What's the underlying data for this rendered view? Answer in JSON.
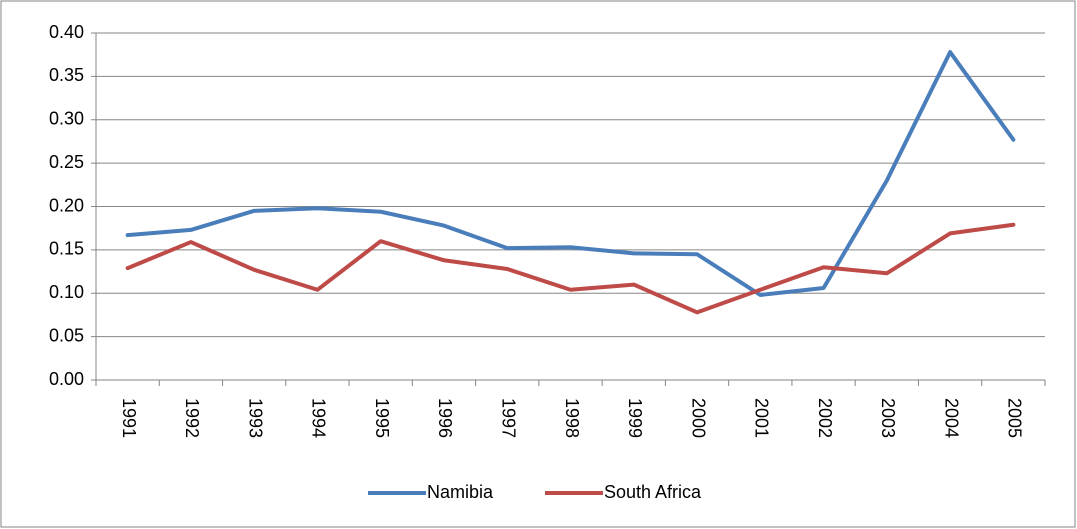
{
  "chart_data": {
    "type": "line",
    "categories": [
      "1991",
      "1992",
      "1993",
      "1994",
      "1995",
      "1996",
      "1997",
      "1998",
      "1999",
      "2000",
      "2001",
      "2002",
      "2003",
      "2004",
      "2005"
    ],
    "series": [
      {
        "name": "Namibia",
        "color": "#4a7ebb",
        "values": [
          0.167,
          0.173,
          0.195,
          0.198,
          0.194,
          0.178,
          0.152,
          0.153,
          0.146,
          0.145,
          0.098,
          0.106,
          0.23,
          0.378,
          0.277
        ]
      },
      {
        "name": "South Africa",
        "color": "#be4b48",
        "values": [
          0.129,
          0.159,
          0.127,
          0.104,
          0.16,
          0.138,
          0.128,
          0.104,
          0.11,
          0.078,
          0.104,
          0.13,
          0.123,
          0.169,
          0.179
        ]
      }
    ],
    "ylim": [
      0,
      0.4
    ],
    "yticks": [
      {
        "value": 0,
        "label": "0.00"
      },
      {
        "value": 0.05,
        "label": "0.05"
      },
      {
        "value": 0.1,
        "label": "0.10"
      },
      {
        "value": 0.15,
        "label": "0.15"
      },
      {
        "value": 0.2,
        "label": "0.20"
      },
      {
        "value": 0.25,
        "label": "0.25"
      },
      {
        "value": 0.3,
        "label": "0.30"
      },
      {
        "value": 0.35,
        "label": "0.35"
      },
      {
        "value": 0.4,
        "label": "0.40"
      }
    ],
    "grid": true,
    "legend": "bottom"
  }
}
